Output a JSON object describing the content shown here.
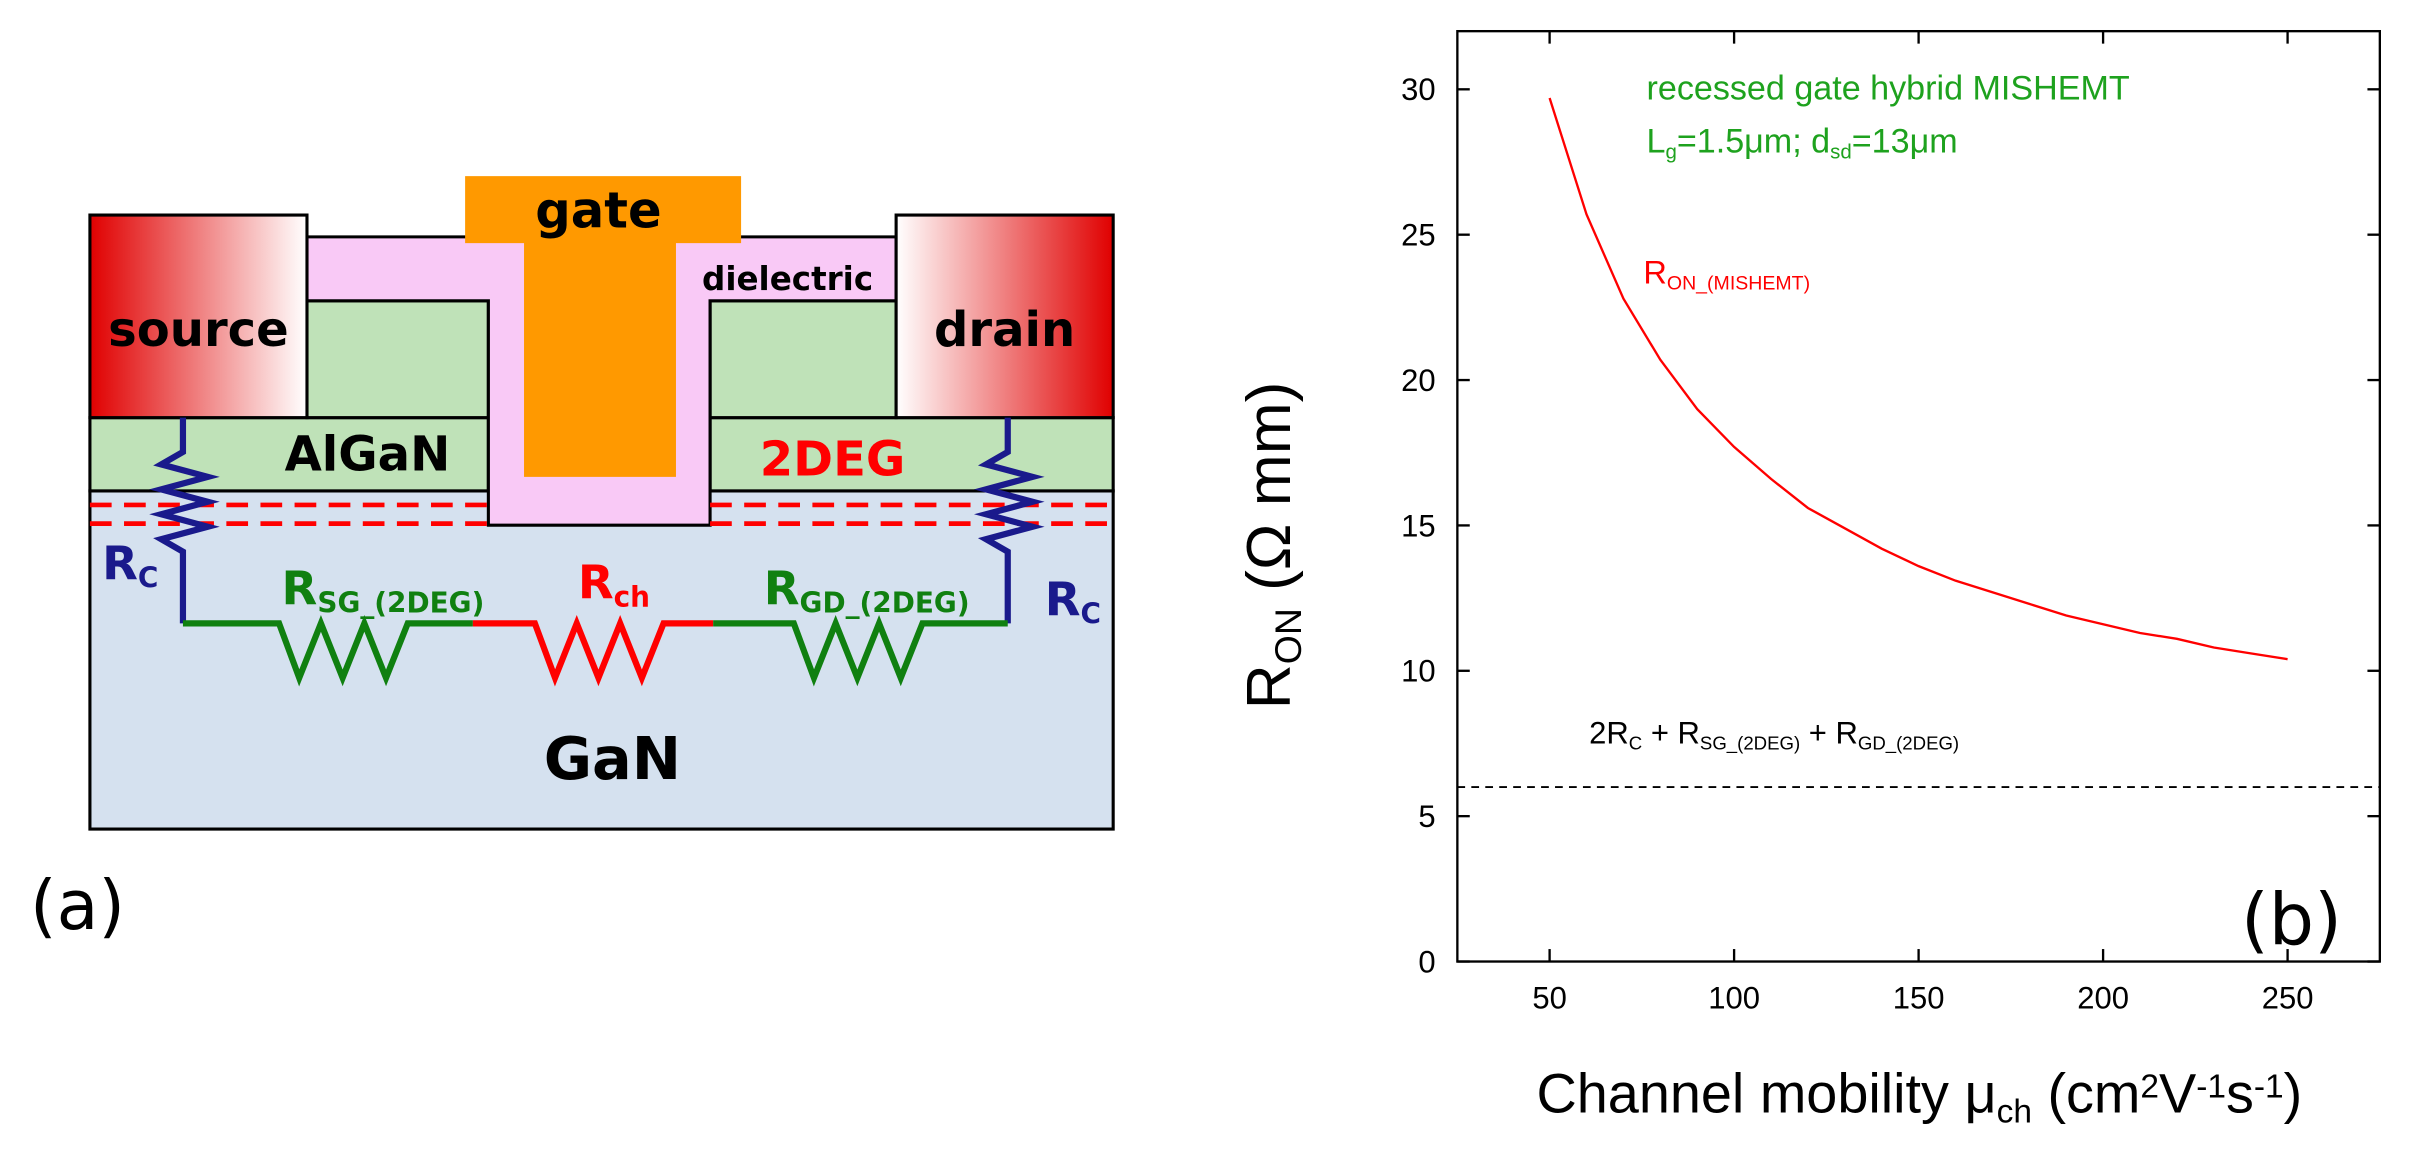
{
  "diagram": {
    "source": "source",
    "gate": "gate",
    "dielectric": "dielectric",
    "drain": "drain",
    "algan": "AlGaN",
    "two_deg": "2DEG",
    "gan": "GaN",
    "panel": "(a)",
    "rc_left": [
      {
        "text": "R"
      },
      {
        "text": "C",
        "pos": "sub"
      }
    ],
    "rsg": [
      {
        "text": "R"
      },
      {
        "text": "SG_(2DEG)",
        "pos": "sub"
      }
    ],
    "rch": [
      {
        "text": "R"
      },
      {
        "text": "ch",
        "pos": "sub"
      }
    ],
    "rgd": [
      {
        "text": "R"
      },
      {
        "text": "GD_(2DEG)",
        "pos": "sub"
      }
    ],
    "rc_right": [
      {
        "text": "R"
      },
      {
        "text": "C",
        "pos": "sub"
      }
    ]
  },
  "chart_data": {
    "type": "line",
    "x_label": [
      {
        "text": "Channel mobility μ"
      },
      {
        "text": "ch",
        "pos": "sub"
      },
      {
        "text": " (cm"
      },
      {
        "text": "2",
        "pos": "sup"
      },
      {
        "text": "V"
      },
      {
        "text": "-1",
        "pos": "sup"
      },
      {
        "text": "s"
      },
      {
        "text": "-1",
        "pos": "sup"
      },
      {
        "text": ")"
      }
    ],
    "y_label": [
      {
        "text": "R"
      },
      {
        "text": "ON",
        "pos": "sub"
      },
      {
        "text": " (Ω mm)"
      }
    ],
    "annotations": [
      [
        {
          "text": "recessed gate hybrid MISHEMT"
        }
      ],
      [
        {
          "text": "L"
        },
        {
          "text": "g",
          "pos": "sub"
        },
        {
          "text": "=1.5μm; d"
        },
        {
          "text": "sd",
          "pos": "sub"
        },
        {
          "text": "=13μm"
        }
      ]
    ],
    "annotation_color": "#1ea21e",
    "panel": "(b)",
    "x": [
      50,
      60,
      70,
      80,
      90,
      100,
      110,
      120,
      130,
      140,
      150,
      160,
      170,
      180,
      190,
      200,
      210,
      220,
      230,
      240,
      250
    ],
    "series": [
      {
        "name": [
          {
            "text": "R"
          },
          {
            "text": "ON_(MISHEMT)",
            "pos": "sub"
          }
        ],
        "color": "#ff0000",
        "values": [
          29.7,
          25.7,
          22.8,
          20.7,
          19.0,
          17.7,
          16.6,
          15.6,
          14.9,
          14.2,
          13.6,
          13.1,
          12.7,
          12.3,
          11.9,
          11.6,
          11.3,
          11.1,
          10.8,
          10.6,
          10.4
        ]
      }
    ],
    "reference_line": {
      "value": 6,
      "color": "#000000",
      "label": [
        {
          "text": "2R"
        },
        {
          "text": "C",
          "pos": "sub"
        },
        {
          "text": " + R"
        },
        {
          "text": "SG_(2DEG)",
          "pos": "sub"
        },
        {
          "text": " + R"
        },
        {
          "text": "GD_(2DEG)",
          "pos": "sub"
        }
      ]
    },
    "xlim": [
      25,
      275
    ],
    "xticks": [
      50,
      100,
      150,
      200,
      250
    ],
    "ylim": [
      0,
      32
    ],
    "yticks": [
      0,
      5,
      10,
      15,
      20,
      25,
      30
    ],
    "grid": false
  }
}
